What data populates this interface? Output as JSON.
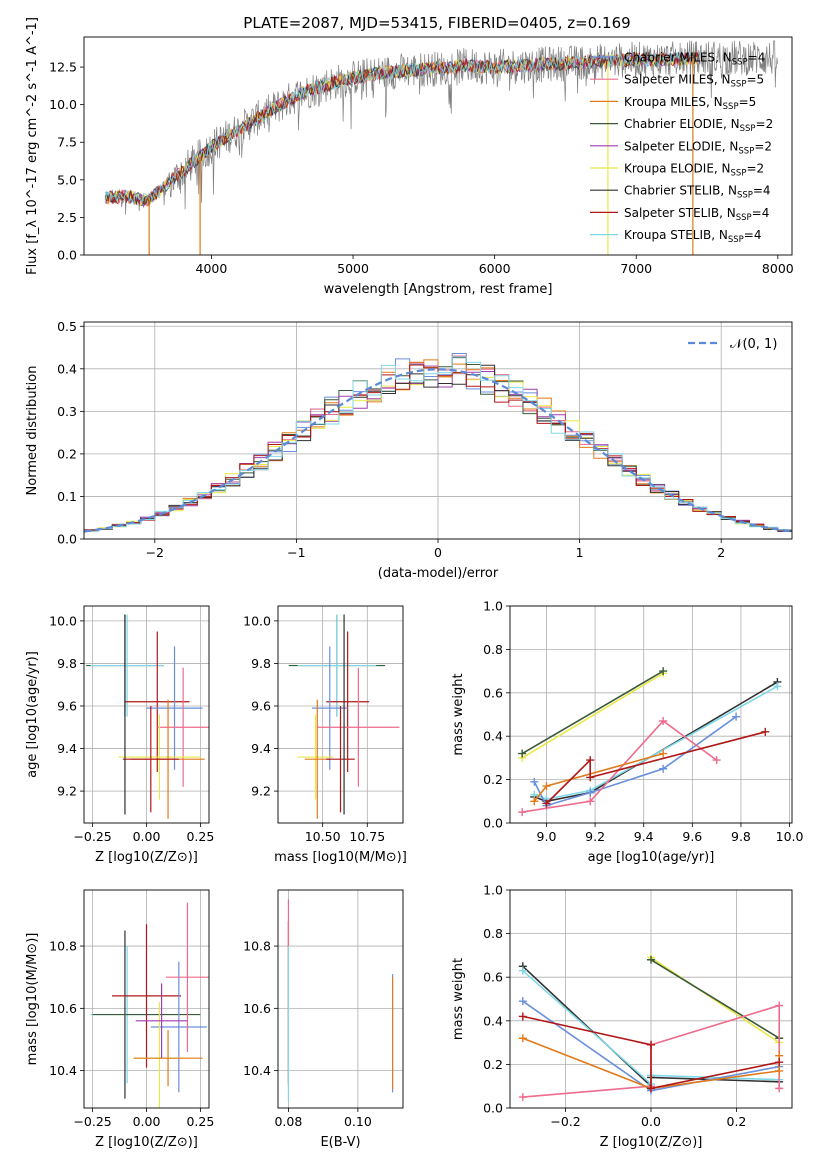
{
  "figure_title": "PLATE=2087, MJD=53415, FIBERID=0405, z=0.169",
  "colors": [
    "#6a8fdc",
    "#ee6b8c",
    "#e07a1a",
    "#3a5a3a",
    "#a03cb0",
    "#e8e84a",
    "#303030",
    "#b01818",
    "#7fd8e8"
  ],
  "chart_data": [
    {
      "id": "spectrum",
      "type": "line",
      "title": "PLATE=2087, MJD=53415, FIBERID=0405, z=0.169",
      "xlabel": "wavelength [Angstrom, rest frame]",
      "ylabel": "Flux [f_λ 10^-17 erg cm^-2 s^-1 A^-1]",
      "xlim": [
        3100,
        8100
      ],
      "ylim": [
        0,
        14.5
      ],
      "xticks": [
        4000,
        5000,
        6000,
        7000,
        8000
      ],
      "yticks": [
        0.0,
        2.5,
        5.0,
        7.5,
        10.0,
        12.5
      ],
      "ytick_labels": [
        "0.0",
        "2.5",
        "5.0",
        "7.5",
        "10.0",
        "12.5"
      ],
      "grid": false,
      "legend_position": "top-right",
      "observed_color": "#808080",
      "continuum": {
        "x": [
          3250,
          3400,
          3550,
          3700,
          3850,
          4000,
          4200,
          4400,
          4600,
          4800,
          5000,
          5200,
          5400,
          5600,
          5800,
          6000,
          6200,
          6400,
          6600,
          6800,
          7000,
          7200,
          7400
        ],
        "y": [
          3.8,
          3.9,
          3.6,
          4.8,
          6.0,
          7.2,
          8.4,
          9.5,
          10.6,
          11.3,
          11.8,
          12.1,
          12.3,
          12.4,
          12.6,
          12.5,
          12.6,
          12.7,
          12.8,
          12.9,
          13.0,
          13.0,
          13.1
        ]
      },
      "series": [
        {
          "name": "Chabrier MILES, N_SSP=4",
          "color": "#6a8fdc"
        },
        {
          "name": "Salpeter MILES, N_SSP=5",
          "color": "#ee6b8c"
        },
        {
          "name": "Kroupa MILES, N_SSP=5",
          "color": "#e07a1a"
        },
        {
          "name": "Chabrier ELODIE, N_SSP=2",
          "color": "#3a5a3a"
        },
        {
          "name": "Salpeter ELODIE, N_SSP=2",
          "color": "#a03cb0"
        },
        {
          "name": "Kroupa ELODIE, N_SSP=2",
          "color": "#e8e84a"
        },
        {
          "name": "Chabrier STELIB, N_SSP=4",
          "color": "#303030"
        },
        {
          "name": "Salpeter STELIB, N_SSP=4",
          "color": "#b01818"
        },
        {
          "name": "Kroupa STELIB, N_SSP=4",
          "color": "#7fd8e8"
        }
      ],
      "dropouts": [
        {
          "x": 3560,
          "color": "#e07a1a"
        },
        {
          "x": 3920,
          "color": "#e07a1a"
        },
        {
          "x": 6800,
          "color": "#e8e84a"
        },
        {
          "x": 7400,
          "color": "#e07a1a"
        }
      ]
    },
    {
      "id": "residuals",
      "type": "step",
      "xlabel": "(data-model)/error",
      "ylabel": "Normed distribution",
      "xlim": [
        -2.5,
        2.5
      ],
      "ylim": [
        0,
        0.51
      ],
      "xticks": [
        -2,
        -1,
        0,
        1,
        2
      ],
      "xtick_labels": [
        "−2",
        "−1",
        "0",
        "1",
        "2"
      ],
      "yticks": [
        0.0,
        0.1,
        0.2,
        0.3,
        0.4,
        0.5
      ],
      "ytick_labels": [
        "0.0",
        "0.1",
        "0.2",
        "0.3",
        "0.4",
        "0.5"
      ],
      "grid": true,
      "legend_position": "top-right",
      "legend": [
        "𝒩(0, 1)"
      ],
      "bin_width": 0.1
    },
    {
      "id": "age-vs-Z",
      "type": "errorbar",
      "xlabel": "Z [log10(Z/Z⊙)]",
      "ylabel": "age [log10(age/yr)]",
      "xlim": [
        -0.29,
        0.29
      ],
      "ylim": [
        9.05,
        10.07
      ],
      "xticks": [
        -0.25,
        0.0,
        0.25
      ],
      "xtick_labels": [
        "−0.25",
        "0.00",
        "0.25"
      ],
      "yticks": [
        9.2,
        9.4,
        9.6,
        9.8,
        10.0
      ],
      "ytick_labels": [
        "9.2",
        "9.4",
        "9.6",
        "9.8",
        "10.0"
      ],
      "grid": true,
      "points": [
        {
          "x": -0.1,
          "xerr": 0.18,
          "y": 9.79,
          "yerr": 0.24,
          "color": "#3a5a3a"
        },
        {
          "x": -0.09,
          "xerr": 0.17,
          "y": 9.79,
          "yerr": 0.24,
          "color": "#7fd8e8"
        },
        {
          "x": 0.05,
          "xerr": 0.15,
          "y": 9.62,
          "yerr": 0.33,
          "color": "#b01818"
        },
        {
          "x": 0.13,
          "xerr": 0.13,
          "y": 9.59,
          "yerr": 0.29,
          "color": "#6a8fdc"
        },
        {
          "x": 0.17,
          "xerr": 0.12,
          "y": 9.5,
          "yerr": 0.28,
          "color": "#ee6b8c"
        },
        {
          "x": 0.06,
          "xerr": 0.19,
          "y": 9.36,
          "yerr": 0.2,
          "color": "#e8e84a"
        },
        {
          "x": 0.1,
          "xerr": 0.17,
          "y": 9.35,
          "yerr": 0.28,
          "color": "#e07a1a"
        },
        {
          "x": 0.02,
          "xerr": 0.13,
          "y": 9.35,
          "yerr": 0.25,
          "color": "#b01818"
        },
        {
          "x": -0.1,
          "xerr": 0.0,
          "y": 9.56,
          "yerr": 0.47,
          "color": "#303030"
        }
      ]
    },
    {
      "id": "age-vs-mass",
      "type": "errorbar",
      "xlabel": "mass [log10(M/M⊙)]",
      "ylabel": "",
      "xlim": [
        10.25,
        10.95
      ],
      "ylim": [
        9.05,
        10.07
      ],
      "xticks": [
        10.5,
        10.75
      ],
      "xtick_labels": [
        "10.50",
        "10.75"
      ],
      "yticks": [
        9.2,
        9.4,
        9.6,
        9.8,
        10.0
      ],
      "ytick_labels": [
        "9.2",
        "9.4",
        "9.6",
        "9.8",
        "10.0"
      ],
      "grid": true,
      "points": [
        {
          "x": 10.58,
          "xerr": 0.27,
          "y": 9.79,
          "yerr": 0.24,
          "color": "#3a5a3a"
        },
        {
          "x": 10.58,
          "xerr": 0.22,
          "y": 9.79,
          "yerr": 0.24,
          "color": "#7fd8e8"
        },
        {
          "x": 10.64,
          "xerr": 0.12,
          "y": 9.62,
          "yerr": 0.33,
          "color": "#b01818"
        },
        {
          "x": 10.54,
          "xerr": 0.1,
          "y": 9.59,
          "yerr": 0.29,
          "color": "#6a8fdc"
        },
        {
          "x": 10.7,
          "xerr": 0.23,
          "y": 9.5,
          "yerr": 0.28,
          "color": "#ee6b8c"
        },
        {
          "x": 10.46,
          "xerr": 0.1,
          "y": 9.36,
          "yerr": 0.2,
          "color": "#e8e84a"
        },
        {
          "x": 10.47,
          "xerr": 0.07,
          "y": 9.35,
          "yerr": 0.28,
          "color": "#e07a1a"
        },
        {
          "x": 10.6,
          "xerr": 0.08,
          "y": 9.35,
          "yerr": 0.25,
          "color": "#b01818"
        },
        {
          "x": 10.62,
          "xerr": 0.0,
          "y": 9.56,
          "yerr": 0.47,
          "color": "#303030"
        }
      ]
    },
    {
      "id": "weight-vs-age",
      "type": "line",
      "xlabel": "age [log10(age/yr)]",
      "ylabel": "mass weight",
      "xlim": [
        8.85,
        10.01
      ],
      "ylim": [
        0,
        1.0
      ],
      "xticks": [
        9.0,
        9.2,
        9.4,
        9.6,
        9.8,
        10.0
      ],
      "xtick_labels": [
        "9.0",
        "9.2",
        "9.4",
        "9.6",
        "9.8",
        "10.0"
      ],
      "yticks": [
        0.0,
        0.2,
        0.4,
        0.6,
        0.8,
        1.0
      ],
      "ytick_labels": [
        "0.0",
        "0.2",
        "0.4",
        "0.6",
        "0.8",
        "1.0"
      ],
      "grid": true,
      "series": [
        {
          "color": "#e8e84a",
          "x": [
            8.9,
            9.48
          ],
          "y": [
            0.3,
            0.69
          ]
        },
        {
          "color": "#3a5a3a",
          "x": [
            8.9,
            9.48
          ],
          "y": [
            0.32,
            0.7
          ]
        },
        {
          "color": "#303030",
          "x": [
            8.95,
            9.0,
            9.18,
            9.95
          ],
          "y": [
            0.12,
            0.1,
            0.14,
            0.65
          ]
        },
        {
          "color": "#7fd8e8",
          "x": [
            8.95,
            9.0,
            9.18,
            9.95
          ],
          "y": [
            0.13,
            0.11,
            0.15,
            0.63
          ]
        },
        {
          "color": "#6a8fdc",
          "x": [
            8.95,
            9.0,
            9.18,
            9.48,
            9.78
          ],
          "y": [
            0.19,
            0.08,
            0.14,
            0.25,
            0.49
          ]
        },
        {
          "color": "#ee6b8c",
          "x": [
            8.9,
            9.18,
            9.48,
            9.7
          ],
          "y": [
            0.05,
            0.1,
            0.47,
            0.29
          ]
        },
        {
          "color": "#e07a1a",
          "x": [
            8.95,
            9.0,
            9.48
          ],
          "y": [
            0.1,
            0.17,
            0.32
          ]
        },
        {
          "color": "#b01818",
          "x": [
            9.0,
            9.18,
            9.18,
            9.9
          ],
          "y": [
            0.09,
            0.29,
            0.21,
            0.42
          ]
        }
      ]
    },
    {
      "id": "mass-vs-Z",
      "type": "errorbar",
      "xlabel": "Z [log10(Z/Z⊙)]",
      "ylabel": "mass [log10(M/M⊙)]",
      "xlim": [
        -0.29,
        0.29
      ],
      "ylim": [
        10.28,
        10.98
      ],
      "xticks": [
        -0.25,
        0.0,
        0.25
      ],
      "xtick_labels": [
        "−0.25",
        "0.00",
        "0.25"
      ],
      "yticks": [
        10.4,
        10.6,
        10.8
      ],
      "ytick_labels": [
        "10.4",
        "10.6",
        "10.8"
      ],
      "grid": true,
      "points": [
        {
          "x": -0.1,
          "xerr": 0.0,
          "y": 10.58,
          "yerr": 0.27,
          "color": "#303030"
        },
        {
          "x": -0.09,
          "xerr": 0.17,
          "y": 10.58,
          "yerr": 0.22,
          "color": "#7fd8e8"
        },
        {
          "x": 0.0,
          "xerr": 0.25,
          "y": 10.58,
          "yerr": 0.0,
          "color": "#3a5a3a"
        },
        {
          "x": 0.0,
          "xerr": 0.16,
          "y": 10.64,
          "yerr": 0.23,
          "color": "#b01818"
        },
        {
          "x": 0.15,
          "xerr": 0.13,
          "y": 10.54,
          "yerr": 0.21,
          "color": "#6a8fdc"
        },
        {
          "x": 0.19,
          "xerr": 0.1,
          "y": 10.7,
          "yerr": 0.24,
          "color": "#ee6b8c"
        },
        {
          "x": 0.06,
          "xerr": 0.12,
          "y": 10.44,
          "yerr": 0.18,
          "color": "#e8e84a"
        },
        {
          "x": 0.1,
          "xerr": 0.16,
          "y": 10.44,
          "yerr": 0.09,
          "color": "#e07a1a"
        },
        {
          "x": 0.07,
          "xerr": 0.12,
          "y": 10.56,
          "yerr": 0.12,
          "color": "#a03cb0"
        }
      ]
    },
    {
      "id": "mass-vs-ebv",
      "type": "errorbar",
      "xlabel": "E(B-V)",
      "ylabel": "",
      "xlim": [
        0.077,
        0.113
      ],
      "ylim": [
        10.28,
        10.98
      ],
      "xticks": [
        0.08,
        0.1
      ],
      "xtick_labels": [
        "0.08",
        "0.10"
      ],
      "yticks": [
        10.4,
        10.6,
        10.8
      ],
      "ytick_labels": [
        "10.4",
        "10.6",
        "10.8"
      ],
      "grid": true,
      "points": [
        {
          "x": 0.08,
          "xerr": 0.0,
          "y": 10.62,
          "yerr": 0.26,
          "color": "#b01818"
        },
        {
          "x": 0.08,
          "xerr": 0.0,
          "y": 10.65,
          "yerr": 0.3,
          "color": "#ee6b8c"
        },
        {
          "x": 0.08,
          "xerr": 0.0,
          "y": 10.55,
          "yerr": 0.25,
          "color": "#7fd8e8"
        },
        {
          "x": 0.11,
          "xerr": 0.0,
          "y": 10.52,
          "yerr": 0.19,
          "color": "#6a8fdc"
        },
        {
          "x": 0.11,
          "xerr": 0.0,
          "y": 10.52,
          "yerr": 0.18,
          "color": "#e07a1a"
        }
      ]
    },
    {
      "id": "weight-vs-Z",
      "type": "line",
      "xlabel": "Z [log10(Z/Z⊙)]",
      "ylabel": "mass weight",
      "xlim": [
        -0.33,
        0.33
      ],
      "ylim": [
        0,
        1.0
      ],
      "xticks": [
        -0.2,
        0.0,
        0.2
      ],
      "xtick_labels": [
        "−0.2",
        "0.0",
        "0.2"
      ],
      "yticks": [
        0.0,
        0.2,
        0.4,
        0.6,
        0.8,
        1.0
      ],
      "ytick_labels": [
        "0.0",
        "0.2",
        "0.4",
        "0.6",
        "0.8",
        "1.0"
      ],
      "grid": true,
      "series": [
        {
          "color": "#e8e84a",
          "x": [
            0.0,
            0.3
          ],
          "y": [
            0.69,
            0.3
          ]
        },
        {
          "color": "#3a5a3a",
          "x": [
            0.0,
            0.3
          ],
          "y": [
            0.68,
            0.32
          ]
        },
        {
          "color": "#303030",
          "x": [
            -0.3,
            0.0,
            0.0,
            0.3
          ],
          "y": [
            0.65,
            0.1,
            0.14,
            0.12
          ]
        },
        {
          "color": "#7fd8e8",
          "x": [
            -0.3,
            0.0,
            0.0,
            0.3
          ],
          "y": [
            0.63,
            0.11,
            0.15,
            0.13
          ]
        },
        {
          "color": "#6a8fdc",
          "x": [
            -0.3,
            0.0,
            0.3
          ],
          "y": [
            0.49,
            0.08,
            0.19
          ]
        },
        {
          "color": "#ee6b8c",
          "x": [
            -0.3,
            0.0,
            0.0,
            0.3,
            0.3
          ],
          "y": [
            0.05,
            0.1,
            0.29,
            0.47,
            0.09
          ]
        },
        {
          "color": "#e07a1a",
          "x": [
            -0.3,
            0.0,
            0.3,
            0.3
          ],
          "y": [
            0.32,
            0.09,
            0.17,
            0.24
          ]
        },
        {
          "color": "#b01818",
          "x": [
            -0.3,
            0.0,
            0.0,
            0.3
          ],
          "y": [
            0.42,
            0.29,
            0.09,
            0.21
          ]
        }
      ]
    }
  ]
}
